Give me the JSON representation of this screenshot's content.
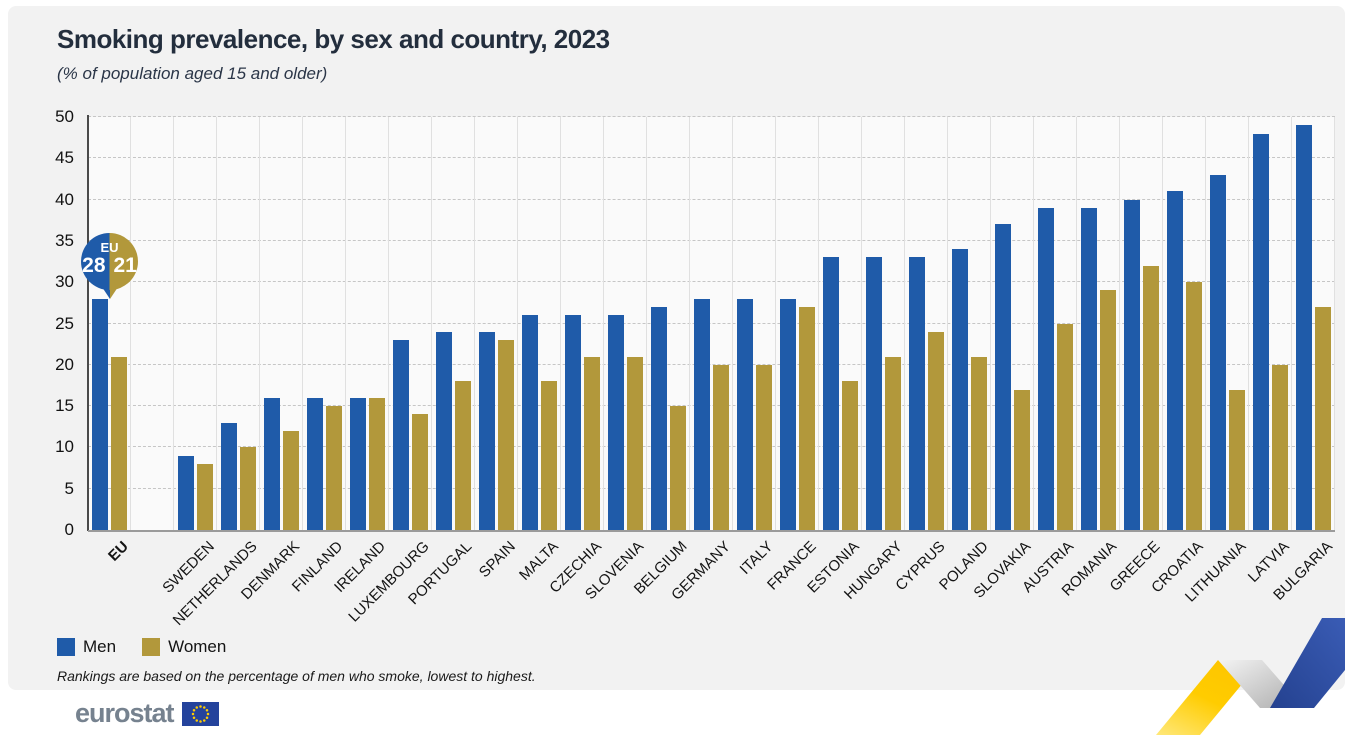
{
  "header": {
    "title": "Smoking prevalence, by sex and country, 2023",
    "subtitle": "(% of population aged 15 and older)"
  },
  "chart_data": {
    "type": "bar",
    "categories": [
      "EU",
      "SWEDEN",
      "NETHERLANDS",
      "DENMARK",
      "FINLAND",
      "IRELAND",
      "LUXEMBOURG",
      "PORTUGAL",
      "SPAIN",
      "MALTA",
      "CZECHIA",
      "SLOVENIA",
      "BELGIUM",
      "GERMANY",
      "ITALY",
      "FRANCE",
      "ESTONIA",
      "HUNGARY",
      "CYPRUS",
      "POLAND",
      "SLOVAKIA",
      "AUSTRIA",
      "ROMANIA",
      "GREECE",
      "CROATIA",
      "LITHUANIA",
      "LATVIA",
      "BULGARIA"
    ],
    "series": [
      {
        "name": "Men",
        "color": "#1f5ba9",
        "values": [
          28,
          9,
          13,
          16,
          16,
          16,
          23,
          24,
          24,
          26,
          26,
          26,
          27,
          28,
          28,
          28,
          33,
          33,
          33,
          34,
          37,
          39,
          39,
          40,
          41,
          43,
          48,
          49
        ]
      },
      {
        "name": "Women",
        "color": "#b2983b",
        "values": [
          21,
          8,
          10,
          12,
          15,
          16,
          14,
          18,
          23,
          18,
          21,
          21,
          15,
          20,
          20,
          27,
          18,
          21,
          24,
          21,
          17,
          25,
          29,
          32,
          30,
          17,
          20,
          27
        ]
      }
    ],
    "ylim": [
      0,
      50
    ],
    "ytick_step": 5,
    "gap_after_index": 0,
    "grid": "horizontal-dashed",
    "legend_position": "bottom-left",
    "eu_callout": {
      "label": "EU",
      "men_value": "28",
      "women_value": "21"
    }
  },
  "legend": {
    "items": [
      {
        "label": "Men",
        "color": "#1f5ba9"
      },
      {
        "label": "Women",
        "color": "#b2983b"
      }
    ]
  },
  "footnote": "Rankings are based on the percentage of men who smoke, lowest to highest.",
  "logo": {
    "text": "eurostat"
  },
  "colors": {
    "men": "#1f5ba9",
    "women": "#b2983b",
    "card_background": "#f2f2f2",
    "ribbon_yellow": "#ffcc00",
    "ribbon_blue": "#2c4fa3",
    "flag_blue": "#24439c",
    "flag_stars": "#ffcc00"
  }
}
